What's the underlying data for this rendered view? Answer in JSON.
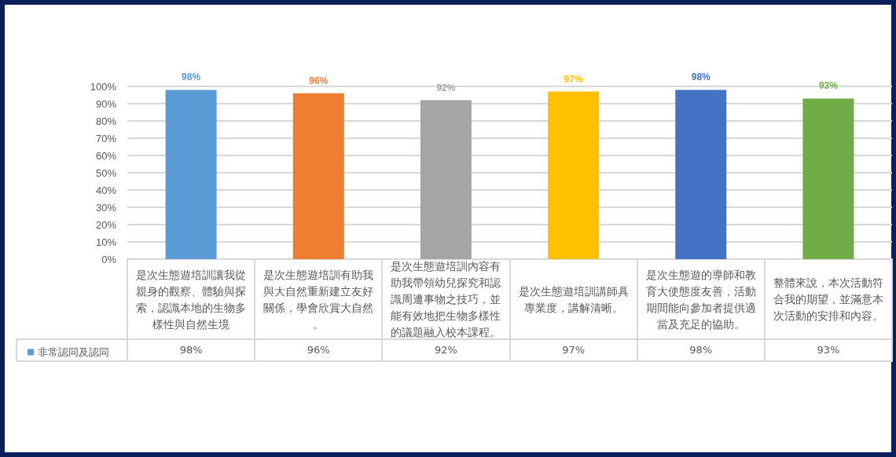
{
  "chart_data": {
    "type": "bar",
    "categories": [
      "是次生態遊培訓讓我從親身的觀察、體驗與探索，認識本地的生物多樣性與自然生境",
      "是次生態遊培訓有助我與大自然重新建立友好關係，學會欣賞大自然。",
      "是次生態遊培訓內容有助我帶領幼兒探究和認識周遭事物之技巧，並能有效地把生物多樣性的議題融入校本課程。",
      "是次生態遊培訓講師具專業度，講解清晰。",
      "是次生態遊的導師和教育大使態度友善，活動期間能向參加者提供適當及充足的協助。",
      "整體來說，本次活動符合我的期望，並滿意本次活動的安排和內容。"
    ],
    "series": [
      {
        "name": "非常認同及認同",
        "color": "#5b9bd5",
        "colors": [
          "#5b9bd5",
          "#ed7d31",
          "#a5a5a5",
          "#ffc000",
          "#4472c4",
          "#70ad47"
        ],
        "values": [
          98,
          96,
          92,
          97,
          98,
          93
        ],
        "value_labels": [
          "98%",
          "96%",
          "92%",
          "97%",
          "98%",
          "93%"
        ]
      }
    ],
    "ylim": [
      0,
      100
    ],
    "yticks": [
      {
        "value": 0,
        "label": "0%"
      },
      {
        "value": 10,
        "label": "10%"
      },
      {
        "value": 20,
        "label": "20%"
      },
      {
        "value": 30,
        "label": "30%"
      },
      {
        "value": 40,
        "label": "40%"
      },
      {
        "value": 50,
        "label": "50%"
      },
      {
        "value": 60,
        "label": "60%"
      },
      {
        "value": 70,
        "label": "70%"
      },
      {
        "value": 80,
        "label": "80%"
      },
      {
        "value": 90,
        "label": "90%"
      },
      {
        "value": 100,
        "label": "100%"
      }
    ],
    "grid": "y",
    "legend": "bottom left"
  }
}
